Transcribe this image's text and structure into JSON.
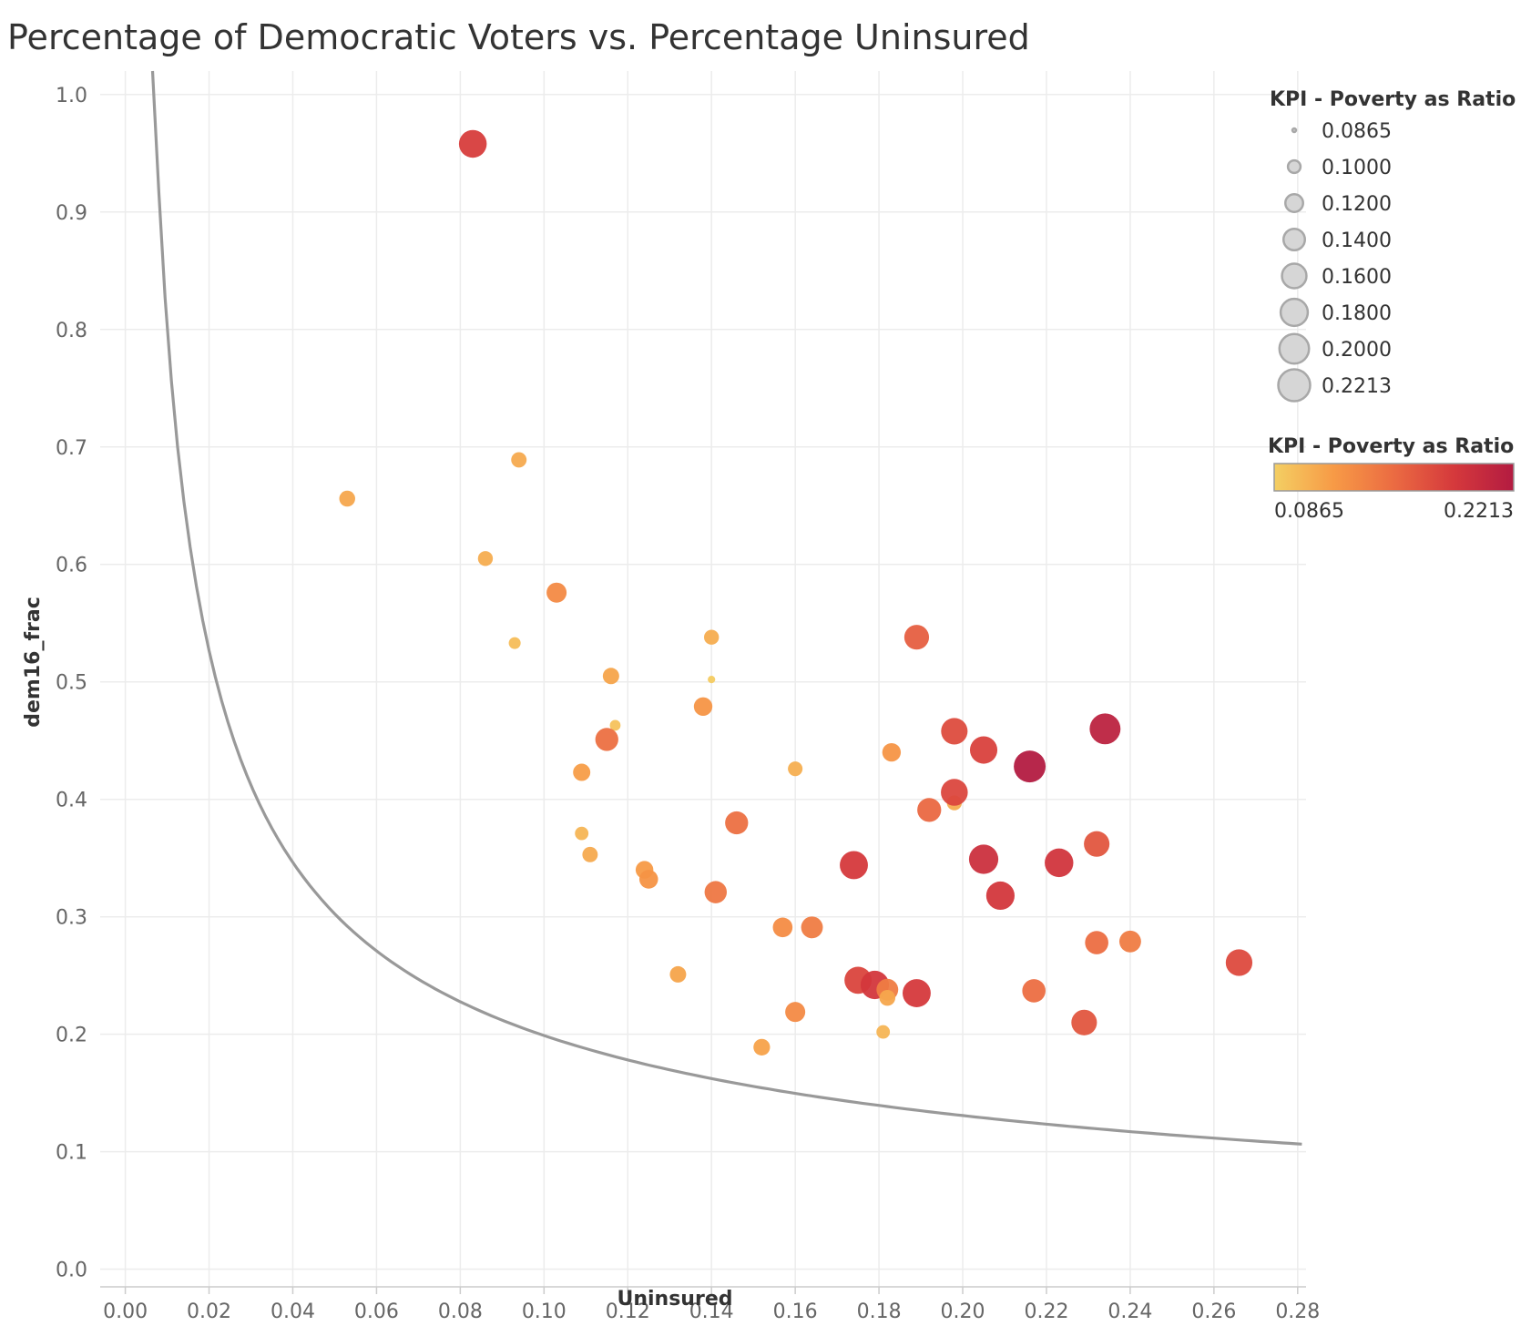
{
  "chart_data": {
    "type": "scatter",
    "title": "Percentage of Democratic Voters vs. Percentage Uninsured",
    "xlabel": "Uninsured",
    "ylabel": "dem16_frac",
    "xlim": [
      -0.006,
      0.282
    ],
    "ylim": [
      -0.015,
      1.02
    ],
    "x_ticks": [
      "0.00",
      "0.02",
      "0.04",
      "0.06",
      "0.08",
      "0.10",
      "0.12",
      "0.14",
      "0.16",
      "0.18",
      "0.20",
      "0.22",
      "0.24",
      "0.26",
      "0.28"
    ],
    "y_ticks": [
      "0.0",
      "0.1",
      "0.2",
      "0.3",
      "0.4",
      "0.5",
      "0.6",
      "0.7",
      "0.8",
      "0.9",
      "1.0"
    ],
    "grid": true,
    "trend_line": {
      "type": "power",
      "color": "#999999"
    },
    "size_legend": {
      "title": "KPI - Poverty as Ratio",
      "entries": [
        "0.0865",
        "0.1000",
        "0.1200",
        "0.1400",
        "0.1600",
        "0.1800",
        "0.2000",
        "0.2213"
      ]
    },
    "color_legend": {
      "title": "KPI - Poverty as Ratio",
      "min_label": "0.0865",
      "max_label": "0.2213",
      "colors": [
        "#f4cf63",
        "#f79a46",
        "#eb6b42",
        "#d5393c",
        "#b31b41"
      ]
    },
    "points": [
      {
        "x": 0.083,
        "y": 0.958,
        "kpi": 0.185
      },
      {
        "x": 0.094,
        "y": 0.689,
        "kpi": 0.11
      },
      {
        "x": 0.053,
        "y": 0.656,
        "kpi": 0.112
      },
      {
        "x": 0.086,
        "y": 0.605,
        "kpi": 0.108
      },
      {
        "x": 0.103,
        "y": 0.576,
        "kpi": 0.132
      },
      {
        "x": 0.093,
        "y": 0.533,
        "kpi": 0.098
      },
      {
        "x": 0.14,
        "y": 0.538,
        "kpi": 0.108
      },
      {
        "x": 0.116,
        "y": 0.505,
        "kpi": 0.114
      },
      {
        "x": 0.14,
        "y": 0.502,
        "kpi": 0.089
      },
      {
        "x": 0.117,
        "y": 0.463,
        "kpi": 0.095
      },
      {
        "x": 0.138,
        "y": 0.479,
        "kpi": 0.124
      },
      {
        "x": 0.115,
        "y": 0.451,
        "kpi": 0.15
      },
      {
        "x": 0.109,
        "y": 0.423,
        "kpi": 0.118
      },
      {
        "x": 0.16,
        "y": 0.426,
        "kpi": 0.107
      },
      {
        "x": 0.183,
        "y": 0.44,
        "kpi": 0.124
      },
      {
        "x": 0.189,
        "y": 0.538,
        "kpi": 0.162
      },
      {
        "x": 0.198,
        "y": 0.458,
        "kpi": 0.175
      },
      {
        "x": 0.205,
        "y": 0.442,
        "kpi": 0.182
      },
      {
        "x": 0.216,
        "y": 0.428,
        "kpi": 0.221
      },
      {
        "x": 0.234,
        "y": 0.46,
        "kpi": 0.212
      },
      {
        "x": 0.198,
        "y": 0.397,
        "kpi": 0.108
      },
      {
        "x": 0.198,
        "y": 0.406,
        "kpi": 0.178
      },
      {
        "x": 0.192,
        "y": 0.391,
        "kpi": 0.156
      },
      {
        "x": 0.146,
        "y": 0.38,
        "kpi": 0.15
      },
      {
        "x": 0.109,
        "y": 0.371,
        "kpi": 0.103
      },
      {
        "x": 0.111,
        "y": 0.353,
        "kpi": 0.11
      },
      {
        "x": 0.124,
        "y": 0.34,
        "kpi": 0.12
      },
      {
        "x": 0.125,
        "y": 0.332,
        "kpi": 0.125
      },
      {
        "x": 0.141,
        "y": 0.321,
        "kpi": 0.145
      },
      {
        "x": 0.174,
        "y": 0.344,
        "kpi": 0.188
      },
      {
        "x": 0.205,
        "y": 0.349,
        "kpi": 0.198
      },
      {
        "x": 0.209,
        "y": 0.318,
        "kpi": 0.19
      },
      {
        "x": 0.223,
        "y": 0.346,
        "kpi": 0.192
      },
      {
        "x": 0.232,
        "y": 0.362,
        "kpi": 0.168
      },
      {
        "x": 0.157,
        "y": 0.291,
        "kpi": 0.13
      },
      {
        "x": 0.164,
        "y": 0.291,
        "kpi": 0.142
      },
      {
        "x": 0.132,
        "y": 0.251,
        "kpi": 0.114
      },
      {
        "x": 0.232,
        "y": 0.278,
        "kpi": 0.152
      },
      {
        "x": 0.24,
        "y": 0.279,
        "kpi": 0.142
      },
      {
        "x": 0.266,
        "y": 0.261,
        "kpi": 0.176
      },
      {
        "x": 0.175,
        "y": 0.246,
        "kpi": 0.18
      },
      {
        "x": 0.179,
        "y": 0.242,
        "kpi": 0.19
      },
      {
        "x": 0.182,
        "y": 0.238,
        "kpi": 0.142
      },
      {
        "x": 0.182,
        "y": 0.231,
        "kpi": 0.112
      },
      {
        "x": 0.189,
        "y": 0.235,
        "kpi": 0.188
      },
      {
        "x": 0.217,
        "y": 0.237,
        "kpi": 0.152
      },
      {
        "x": 0.16,
        "y": 0.219,
        "kpi": 0.132
      },
      {
        "x": 0.229,
        "y": 0.21,
        "kpi": 0.168
      },
      {
        "x": 0.181,
        "y": 0.202,
        "kpi": 0.103
      },
      {
        "x": 0.152,
        "y": 0.189,
        "kpi": 0.115
      }
    ]
  }
}
